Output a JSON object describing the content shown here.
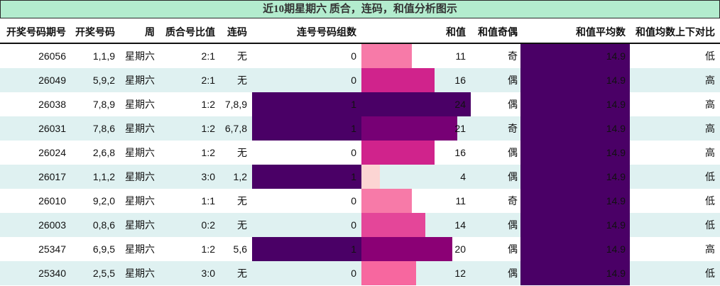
{
  "title": "近10期星期六 质合，连码，和值分析图示",
  "columns": [
    {
      "key": "issue",
      "label": "开奖号码期号"
    },
    {
      "key": "numbers",
      "label": "开奖号码"
    },
    {
      "key": "weekday",
      "label": "周"
    },
    {
      "key": "prime_ratio",
      "label": "质合号比值"
    },
    {
      "key": "consecutive",
      "label": "连码"
    },
    {
      "key": "consec_groups",
      "label": "连号号码组数"
    },
    {
      "key": "sum",
      "label": "和值"
    },
    {
      "key": "sum_parity",
      "label": "和值奇偶"
    },
    {
      "key": "sum_avg",
      "label": "和值平均数"
    },
    {
      "key": "avg_compare",
      "label": "和值均数上下对比"
    }
  ],
  "rows": [
    {
      "issue": "26056",
      "numbers": "1,1,9",
      "weekday": "星期六",
      "prime_ratio": "2:1",
      "consecutive": "无",
      "consec_groups": "0",
      "sum": "11",
      "sum_parity": "奇",
      "sum_avg": "14.9",
      "avg_compare": "低",
      "sum_color": "#f77aa8"
    },
    {
      "issue": "26049",
      "numbers": "5,9,2",
      "weekday": "星期六",
      "prime_ratio": "2:1",
      "consecutive": "无",
      "consec_groups": "0",
      "sum": "16",
      "sum_parity": "偶",
      "sum_avg": "14.9",
      "avg_compare": "高",
      "sum_color": "#d0238c"
    },
    {
      "issue": "26038",
      "numbers": "7,8,9",
      "weekday": "星期六",
      "prime_ratio": "1:2",
      "consecutive": "7,8,9",
      "consec_groups": "1",
      "sum": "24",
      "sum_parity": "偶",
      "sum_avg": "14.9",
      "avg_compare": "高",
      "sum_color": "#4a0066"
    },
    {
      "issue": "26031",
      "numbers": "7,8,6",
      "weekday": "星期六",
      "prime_ratio": "1:2",
      "consecutive": "6,7,8",
      "consec_groups": "1",
      "sum": "21",
      "sum_parity": "奇",
      "sum_avg": "14.9",
      "avg_compare": "高",
      "sum_color": "#770075"
    },
    {
      "issue": "26024",
      "numbers": "2,6,8",
      "weekday": "星期六",
      "prime_ratio": "1:2",
      "consecutive": "无",
      "consec_groups": "0",
      "sum": "16",
      "sum_parity": "偶",
      "sum_avg": "14.9",
      "avg_compare": "高",
      "sum_color": "#d0238c"
    },
    {
      "issue": "26017",
      "numbers": "1,1,2",
      "weekday": "星期六",
      "prime_ratio": "3:0",
      "consecutive": "1,2",
      "consec_groups": "1",
      "sum": "4",
      "sum_parity": "偶",
      "sum_avg": "14.9",
      "avg_compare": "低",
      "sum_color": "#fcd5d3"
    },
    {
      "issue": "26010",
      "numbers": "9,2,0",
      "weekday": "星期六",
      "prime_ratio": "1:1",
      "consecutive": "无",
      "consec_groups": "0",
      "sum": "11",
      "sum_parity": "奇",
      "sum_avg": "14.9",
      "avg_compare": "低",
      "sum_color": "#f77aa8"
    },
    {
      "issue": "26003",
      "numbers": "0,8,6",
      "weekday": "星期六",
      "prime_ratio": "0:2",
      "consecutive": "无",
      "consec_groups": "0",
      "sum": "14",
      "sum_parity": "偶",
      "sum_avg": "14.9",
      "avg_compare": "低",
      "sum_color": "#e44699"
    },
    {
      "issue": "25347",
      "numbers": "6,9,5",
      "weekday": "星期六",
      "prime_ratio": "1:2",
      "consecutive": "5,6",
      "consec_groups": "1",
      "sum": "20",
      "sum_parity": "偶",
      "sum_avg": "14.9",
      "avg_compare": "高",
      "sum_color": "#8b0075"
    },
    {
      "issue": "25340",
      "numbers": "2,5,5",
      "weekday": "星期六",
      "prime_ratio": "3:0",
      "consecutive": "无",
      "consec_groups": "0",
      "sum": "12",
      "sum_parity": "偶",
      "sum_avg": "14.9",
      "avg_compare": "低",
      "sum_color": "#f7679f"
    }
  ],
  "colors": {
    "title_bg": "#b3ecce",
    "row_alt": "#dff1f1",
    "bar_dark_purple": "#4a0066"
  },
  "chart_data": {
    "type": "table",
    "title": "近10期星期六 质合，连码，和值分析图示",
    "columns": [
      "开奖号码期号",
      "开奖号码",
      "周",
      "质合号比值",
      "连码",
      "连号号码组数",
      "和值",
      "和值奇偶",
      "和值平均数",
      "和值均数上下对比"
    ],
    "categories": [
      "26056",
      "26049",
      "26038",
      "26031",
      "26024",
      "26017",
      "26010",
      "26003",
      "25347",
      "25340"
    ],
    "series": [
      {
        "name": "连号号码组数",
        "values": [
          0,
          0,
          1,
          1,
          0,
          1,
          0,
          0,
          1,
          0
        ]
      },
      {
        "name": "和值",
        "values": [
          11,
          16,
          24,
          21,
          16,
          4,
          11,
          14,
          20,
          12
        ]
      },
      {
        "name": "和值平均数",
        "values": [
          14.9,
          14.9,
          14.9,
          14.9,
          14.9,
          14.9,
          14.9,
          14.9,
          14.9,
          14.9
        ]
      }
    ],
    "text_columns": {
      "开奖号码": [
        "1,1,9",
        "5,9,2",
        "7,8,9",
        "7,8,6",
        "2,6,8",
        "1,1,2",
        "9,2,0",
        "0,8,6",
        "6,9,5",
        "2,5,5"
      ],
      "周": [
        "星期六",
        "星期六",
        "星期六",
        "星期六",
        "星期六",
        "星期六",
        "星期六",
        "星期六",
        "星期六",
        "星期六"
      ],
      "质合号比值": [
        "2:1",
        "2:1",
        "1:2",
        "1:2",
        "1:2",
        "3:0",
        "1:1",
        "0:2",
        "1:2",
        "3:0"
      ],
      "连码": [
        "无",
        "无",
        "7,8,9",
        "6,7,8",
        "无",
        "1,2",
        "无",
        "无",
        "5,6",
        "无"
      ],
      "和值奇偶": [
        "奇",
        "偶",
        "偶",
        "奇",
        "偶",
        "偶",
        "奇",
        "偶",
        "偶",
        "偶"
      ],
      "和值均数上下对比": [
        "低",
        "高",
        "高",
        "高",
        "高",
        "低",
        "低",
        "低",
        "高",
        "低"
      ]
    }
  }
}
